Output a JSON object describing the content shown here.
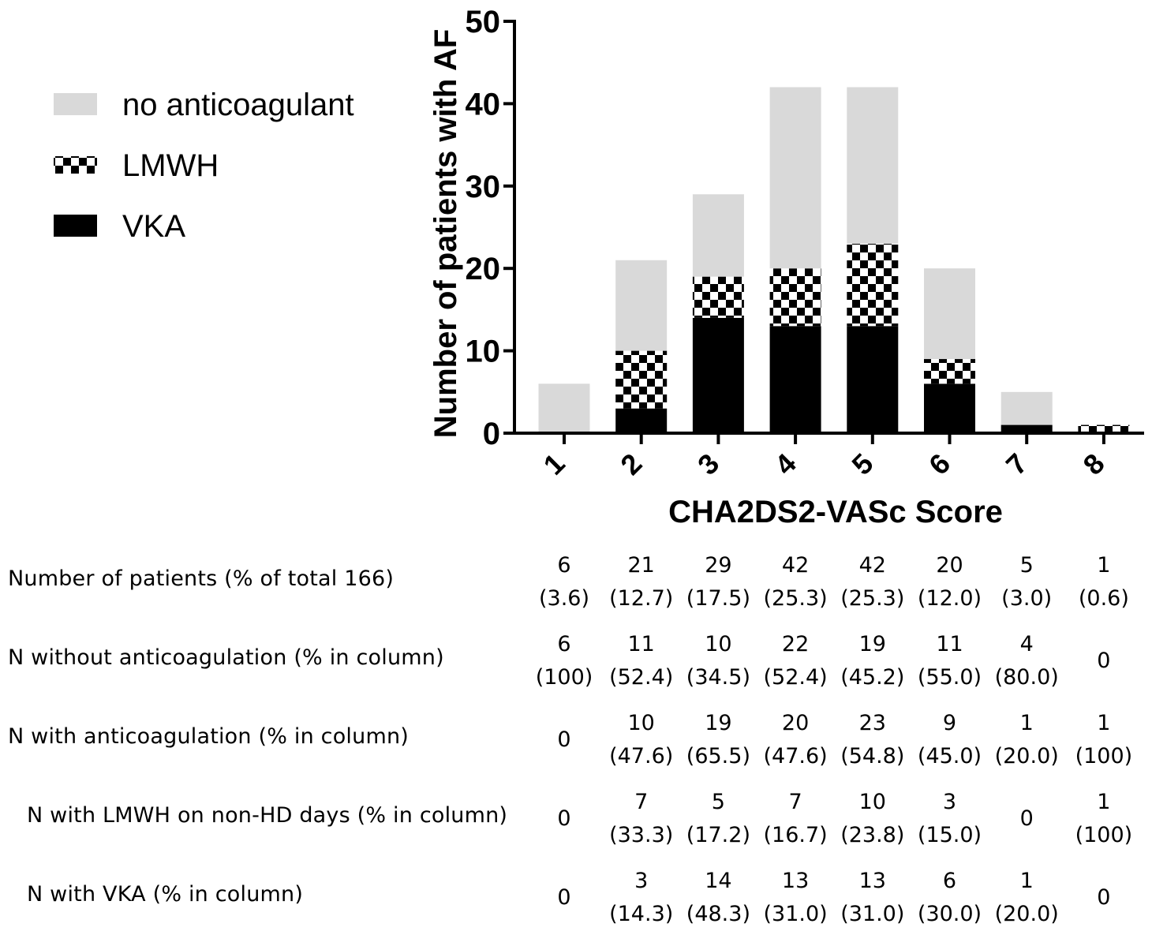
{
  "chart_data": {
    "type": "bar",
    "stacked": true,
    "categories": [
      "1",
      "2",
      "3",
      "4",
      "5",
      "6",
      "7",
      "8"
    ],
    "series": [
      {
        "name": "VKA",
        "values": [
          0,
          3,
          14,
          13,
          13,
          6,
          1,
          0
        ],
        "color": "#000000",
        "pattern": "solid"
      },
      {
        "name": "LMWH",
        "values": [
          0,
          7,
          5,
          7,
          10,
          3,
          0,
          1
        ],
        "color": "#000000",
        "pattern": "checkerboard"
      },
      {
        "name": "no anticoagulant",
        "values": [
          6,
          11,
          10,
          22,
          19,
          11,
          4,
          0
        ],
        "color": "#d9d9d9",
        "pattern": "solid"
      }
    ],
    "legend_order": [
      "no anticoagulant",
      "LMWH",
      "VKA"
    ],
    "legend_position": "left",
    "xlabel": "CHA2DS2-VASc Score",
    "ylabel": "Number of patients with AF",
    "ylim": [
      0,
      50
    ],
    "yticks": [
      0,
      10,
      20,
      30,
      40,
      50
    ],
    "grid": false
  },
  "table": {
    "rows": [
      {
        "label": "Number of patients (% of total 166)",
        "indent": false,
        "cells": [
          [
            "6",
            "(3.6)"
          ],
          [
            "21",
            "(12.7)"
          ],
          [
            "29",
            "(17.5)"
          ],
          [
            "42",
            "(25.3)"
          ],
          [
            "42",
            "(25.3)"
          ],
          [
            "20",
            "(12.0)"
          ],
          [
            "5",
            "(3.0)"
          ],
          [
            "1",
            "(0.6)"
          ]
        ]
      },
      {
        "label": "N without anticoagulation (% in column)",
        "indent": false,
        "cells": [
          [
            "6",
            "(100)"
          ],
          [
            "11",
            "(52.4)"
          ],
          [
            "10",
            "(34.5)"
          ],
          [
            "22",
            "(52.4)"
          ],
          [
            "19",
            "(45.2)"
          ],
          [
            "11",
            "(55.0)"
          ],
          [
            "4",
            "(80.0)"
          ],
          [
            "0",
            ""
          ]
        ]
      },
      {
        "label": "N with anticoagulation (% in column)",
        "indent": false,
        "cells": [
          [
            "0",
            ""
          ],
          [
            "10",
            "(47.6)"
          ],
          [
            "19",
            "(65.5)"
          ],
          [
            "20",
            "(47.6)"
          ],
          [
            "23",
            "(54.8)"
          ],
          [
            "9",
            "(45.0)"
          ],
          [
            "1",
            "(20.0)"
          ],
          [
            "1",
            "(100)"
          ]
        ]
      },
      {
        "label": "N with LMWH on non-HD days (% in column)",
        "indent": true,
        "cells": [
          [
            "0",
            ""
          ],
          [
            "7",
            "(33.3)"
          ],
          [
            "5",
            "(17.2)"
          ],
          [
            "7",
            "(16.7)"
          ],
          [
            "10",
            "(23.8)"
          ],
          [
            "3",
            "(15.0)"
          ],
          [
            "0",
            ""
          ],
          [
            "1",
            "(100)"
          ]
        ]
      },
      {
        "label": "N with VKA (% in column)",
        "indent": true,
        "cells": [
          [
            "0",
            ""
          ],
          [
            "3",
            "(14.3)"
          ],
          [
            "14",
            "(48.3)"
          ],
          [
            "13",
            "(31.0)"
          ],
          [
            "13",
            "(31.0)"
          ],
          [
            "6",
            "(30.0)"
          ],
          [
            "1",
            "(20.0)"
          ],
          [
            "0",
            ""
          ]
        ]
      }
    ]
  }
}
